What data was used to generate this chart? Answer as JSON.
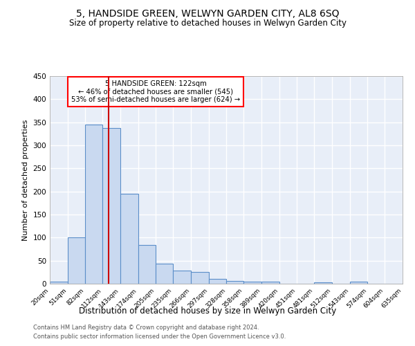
{
  "title": "5, HANDSIDE GREEN, WELWYN GARDEN CITY, AL8 6SQ",
  "subtitle": "Size of property relative to detached houses in Welwyn Garden City",
  "xlabel": "Distribution of detached houses by size in Welwyn Garden City",
  "ylabel": "Number of detached properties",
  "footnote1": "Contains HM Land Registry data © Crown copyright and database right 2024.",
  "footnote2": "Contains public sector information licensed under the Open Government Licence v3.0.",
  "annotation_line1": "5 HANDSIDE GREEN: 122sqm",
  "annotation_line2": "← 46% of detached houses are smaller (545)",
  "annotation_line3": "53% of semi-detached houses are larger (624) →",
  "bar_color": "#c9d9f0",
  "bar_edge_color": "#5b8ec9",
  "bar_edge_width": 0.8,
  "redline_x": 122,
  "redline_color": "#cc0000",
  "background_color": "#e8eef8",
  "grid_color": "#ffffff",
  "bins": [
    20,
    51,
    82,
    112,
    143,
    174,
    205,
    235,
    266,
    297,
    328,
    358,
    389,
    420,
    451,
    481,
    512,
    543,
    574,
    604,
    635
  ],
  "counts": [
    5,
    100,
    345,
    337,
    195,
    84,
    43,
    28,
    26,
    10,
    6,
    4,
    5,
    0,
    0,
    3,
    0,
    4,
    0,
    0,
    3
  ],
  "ylim": [
    0,
    450
  ],
  "yticks": [
    0,
    50,
    100,
    150,
    200,
    250,
    300,
    350,
    400,
    450
  ]
}
